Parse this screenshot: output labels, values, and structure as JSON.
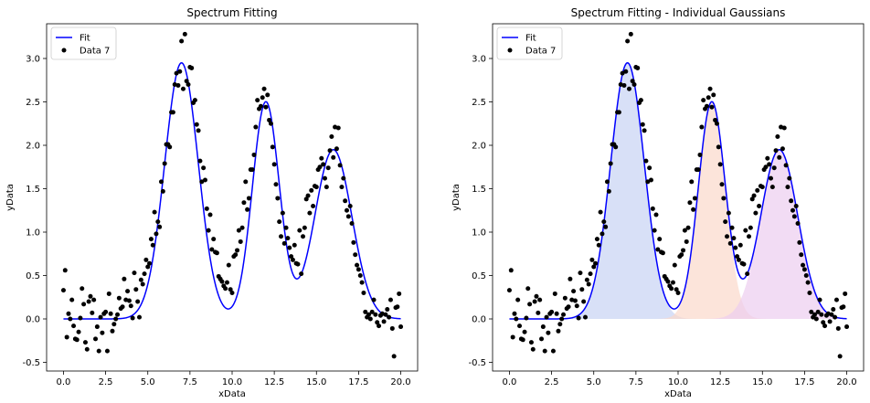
{
  "chart_data": [
    {
      "type": "scatter",
      "title": "Spectrum Fitting",
      "xlabel": "xData",
      "ylabel": "yData",
      "xlim": [
        -1,
        21
      ],
      "ylim": [
        -0.6,
        3.4
      ],
      "xticks": [
        0,
        2.5,
        5,
        7.5,
        10,
        12.5,
        15,
        17.5,
        20
      ],
      "xtick_labels": [
        "0.0",
        "2.5",
        "5.0",
        "7.5",
        "10.0",
        "12.5",
        "15.0",
        "17.5",
        "20.0"
      ],
      "yticks": [
        -0.5,
        0,
        0.5,
        1,
        1.5,
        2,
        2.5,
        3
      ],
      "ytick_labels": [
        "-0.5",
        "0.0",
        "0.5",
        "1.0",
        "1.5",
        "2.0",
        "2.5",
        "3.0"
      ],
      "legend_position": "top-left",
      "series": [
        {
          "name": "Fit",
          "kind": "line",
          "color": "#0000ff"
        },
        {
          "name": "Data 7",
          "kind": "scatter",
          "color": "#000000"
        }
      ]
    },
    {
      "type": "area",
      "title": "Spectrum Fitting - Individual Gaussians",
      "xlabel": "xData",
      "ylabel": "yData",
      "xlim": [
        -1,
        21
      ],
      "ylim": [
        -0.6,
        3.4
      ],
      "xticks": [
        0,
        2.5,
        5,
        7.5,
        10,
        12.5,
        15,
        17.5,
        20
      ],
      "xtick_labels": [
        "0.0",
        "2.5",
        "5.0",
        "7.5",
        "10.0",
        "12.5",
        "15.0",
        "17.5",
        "20.0"
      ],
      "yticks": [
        -0.5,
        0,
        0.5,
        1,
        1.5,
        2,
        2.5,
        3
      ],
      "ytick_labels": [
        "-0.5",
        "0.0",
        "0.5",
        "1.0",
        "1.5",
        "2.0",
        "2.5",
        "3.0"
      ],
      "legend_position": "top-left",
      "series": [
        {
          "name": "Fit",
          "kind": "line",
          "color": "#0000ff"
        },
        {
          "name": "Data 7",
          "kind": "scatter",
          "color": "#000000"
        }
      ],
      "gaussian_fill_colors": [
        "#c7d3f4",
        "#fbd9cb",
        "#eccdf0"
      ]
    }
  ],
  "fit_model": {
    "components": [
      {
        "amplitude": 2.95,
        "center": 7.0,
        "sigma": 1.0
      },
      {
        "amplitude": 2.5,
        "center": 12.0,
        "sigma": 0.8
      },
      {
        "amplitude": 1.95,
        "center": 16.0,
        "sigma": 1.1
      }
    ],
    "x_range": [
      0,
      20
    ]
  },
  "data_points": [
    [
      0.0,
      0.33
    ],
    [
      0.1,
      0.56
    ],
    [
      0.2,
      -0.21
    ],
    [
      0.3,
      0.06
    ],
    [
      0.4,
      0.0
    ],
    [
      0.5,
      0.22
    ],
    [
      0.6,
      -0.08
    ],
    [
      0.7,
      -0.23
    ],
    [
      0.8,
      -0.24
    ],
    [
      0.9,
      -0.15
    ],
    [
      1.0,
      0.01
    ],
    [
      1.1,
      0.35
    ],
    [
      1.2,
      0.17
    ],
    [
      1.3,
      -0.27
    ],
    [
      1.4,
      -0.35
    ],
    [
      1.5,
      0.2
    ],
    [
      1.6,
      0.26
    ],
    [
      1.7,
      0.07
    ],
    [
      1.8,
      0.22
    ],
    [
      1.9,
      -0.23
    ],
    [
      2.0,
      -0.09
    ],
    [
      2.1,
      -0.37
    ],
    [
      2.2,
      0.02
    ],
    [
      2.3,
      -0.16
    ],
    [
      2.4,
      0.06
    ],
    [
      2.5,
      0.08
    ],
    [
      2.6,
      -0.37
    ],
    [
      2.7,
      0.29
    ],
    [
      2.8,
      0.06
    ],
    [
      2.9,
      -0.14
    ],
    [
      3.0,
      -0.06
    ],
    [
      3.1,
      0.0
    ],
    [
      3.2,
      0.05
    ],
    [
      3.3,
      0.24
    ],
    [
      3.4,
      0.12
    ],
    [
      3.5,
      0.14
    ],
    [
      3.6,
      0.46
    ],
    [
      3.7,
      0.22
    ],
    [
      3.8,
      0.32
    ],
    [
      3.9,
      0.21
    ],
    [
      4.0,
      0.15
    ],
    [
      4.1,
      0.01
    ],
    [
      4.2,
      0.53
    ],
    [
      4.3,
      0.34
    ],
    [
      4.4,
      0.2
    ],
    [
      4.5,
      0.02
    ],
    [
      4.6,
      0.45
    ],
    [
      4.7,
      0.4
    ],
    [
      4.8,
      0.52
    ],
    [
      4.9,
      0.68
    ],
    [
      5.0,
      0.6
    ],
    [
      5.1,
      0.64
    ],
    [
      5.2,
      0.92
    ],
    [
      5.3,
      0.85
    ],
    [
      5.4,
      1.23
    ],
    [
      5.5,
      0.98
    ],
    [
      5.6,
      1.12
    ],
    [
      5.7,
      1.06
    ],
    [
      5.8,
      1.58
    ],
    [
      5.9,
      1.47
    ],
    [
      6.0,
      1.79
    ],
    [
      6.1,
      2.01
    ],
    [
      6.2,
      2.01
    ],
    [
      6.3,
      1.98
    ],
    [
      6.4,
      2.38
    ],
    [
      6.5,
      2.38
    ],
    [
      6.6,
      2.7
    ],
    [
      6.7,
      2.83
    ],
    [
      6.8,
      2.69
    ],
    [
      6.9,
      2.85
    ],
    [
      7.0,
      3.2
    ],
    [
      7.1,
      2.65
    ],
    [
      7.2,
      3.28
    ],
    [
      7.3,
      2.74
    ],
    [
      7.4,
      2.7
    ],
    [
      7.5,
      2.9
    ],
    [
      7.6,
      2.89
    ],
    [
      7.7,
      2.49
    ],
    [
      7.8,
      2.52
    ],
    [
      7.9,
      2.24
    ],
    [
      8.0,
      2.17
    ],
    [
      8.1,
      1.82
    ],
    [
      8.2,
      1.58
    ],
    [
      8.3,
      1.74
    ],
    [
      8.4,
      1.6
    ],
    [
      8.5,
      1.27
    ],
    [
      8.6,
      1.02
    ],
    [
      8.7,
      1.2
    ],
    [
      8.8,
      0.8
    ],
    [
      8.9,
      0.92
    ],
    [
      9.0,
      0.77
    ],
    [
      9.1,
      0.76
    ],
    [
      9.2,
      0.49
    ],
    [
      9.3,
      0.46
    ],
    [
      9.4,
      0.43
    ],
    [
      9.5,
      0.38
    ],
    [
      9.6,
      0.35
    ],
    [
      9.7,
      0.42
    ],
    [
      9.8,
      0.62
    ],
    [
      9.9,
      0.34
    ],
    [
      10.0,
      0.3
    ],
    [
      10.1,
      0.72
    ],
    [
      10.2,
      0.74
    ],
    [
      10.3,
      0.79
    ],
    [
      10.4,
      1.02
    ],
    [
      10.5,
      0.89
    ],
    [
      10.6,
      1.05
    ],
    [
      10.7,
      1.34
    ],
    [
      10.8,
      1.58
    ],
    [
      10.9,
      1.26
    ],
    [
      11.0,
      1.39
    ],
    [
      11.1,
      1.72
    ],
    [
      11.2,
      1.72
    ],
    [
      11.3,
      1.89
    ],
    [
      11.4,
      2.21
    ],
    [
      11.5,
      2.52
    ],
    [
      11.6,
      2.42
    ],
    [
      11.7,
      2.45
    ],
    [
      11.8,
      2.55
    ],
    [
      11.9,
      2.65
    ],
    [
      12.0,
      2.44
    ],
    [
      12.1,
      2.58
    ],
    [
      12.2,
      2.29
    ],
    [
      12.3,
      2.25
    ],
    [
      12.4,
      1.98
    ],
    [
      12.5,
      1.78
    ],
    [
      12.6,
      1.55
    ],
    [
      12.7,
      1.39
    ],
    [
      12.8,
      1.12
    ],
    [
      12.9,
      0.95
    ],
    [
      13.0,
      1.22
    ],
    [
      13.1,
      0.87
    ],
    [
      13.2,
      1.05
    ],
    [
      13.3,
      0.93
    ],
    [
      13.4,
      0.82
    ],
    [
      13.5,
      0.72
    ],
    [
      13.6,
      0.68
    ],
    [
      13.7,
      0.85
    ],
    [
      13.8,
      0.64
    ],
    [
      13.9,
      0.63
    ],
    [
      14.0,
      1.02
    ],
    [
      14.1,
      0.52
    ],
    [
      14.2,
      0.95
    ],
    [
      14.3,
      1.05
    ],
    [
      14.4,
      1.38
    ],
    [
      14.5,
      1.42
    ],
    [
      14.6,
      1.22
    ],
    [
      14.7,
      1.48
    ],
    [
      14.8,
      1.3
    ],
    [
      14.9,
      1.53
    ],
    [
      15.0,
      1.52
    ],
    [
      15.1,
      1.72
    ],
    [
      15.2,
      1.75
    ],
    [
      15.3,
      1.85
    ],
    [
      15.4,
      1.78
    ],
    [
      15.5,
      1.62
    ],
    [
      15.6,
      1.52
    ],
    [
      15.7,
      1.74
    ],
    [
      15.8,
      1.94
    ],
    [
      15.9,
      2.1
    ],
    [
      16.0,
      1.86
    ],
    [
      16.1,
      2.21
    ],
    [
      16.2,
      1.96
    ],
    [
      16.3,
      2.2
    ],
    [
      16.4,
      1.77
    ],
    [
      16.5,
      1.52
    ],
    [
      16.6,
      1.62
    ],
    [
      16.7,
      1.36
    ],
    [
      16.8,
      1.25
    ],
    [
      16.9,
      1.18
    ],
    [
      17.0,
      1.3
    ],
    [
      17.1,
      1.1
    ],
    [
      17.2,
      0.88
    ],
    [
      17.3,
      0.74
    ],
    [
      17.4,
      0.62
    ],
    [
      17.5,
      0.57
    ],
    [
      17.6,
      0.5
    ],
    [
      17.7,
      0.42
    ],
    [
      17.8,
      0.3
    ],
    [
      17.9,
      0.08
    ],
    [
      18.0,
      0.02
    ],
    [
      18.1,
      0.05
    ],
    [
      18.2,
      0.0
    ],
    [
      18.3,
      0.08
    ],
    [
      18.4,
      0.22
    ],
    [
      18.5,
      0.05
    ],
    [
      18.6,
      -0.04
    ],
    [
      18.7,
      -0.08
    ],
    [
      18.8,
      0.04
    ],
    [
      18.9,
      0.06
    ],
    [
      19.0,
      -0.03
    ],
    [
      19.1,
      0.05
    ],
    [
      19.2,
      0.11
    ],
    [
      19.3,
      0.02
    ],
    [
      19.4,
      0.22
    ],
    [
      19.5,
      -0.11
    ],
    [
      19.6,
      -0.43
    ],
    [
      19.7,
      0.13
    ],
    [
      19.8,
      0.14
    ],
    [
      19.9,
      0.29
    ],
    [
      20.0,
      -0.09
    ]
  ]
}
